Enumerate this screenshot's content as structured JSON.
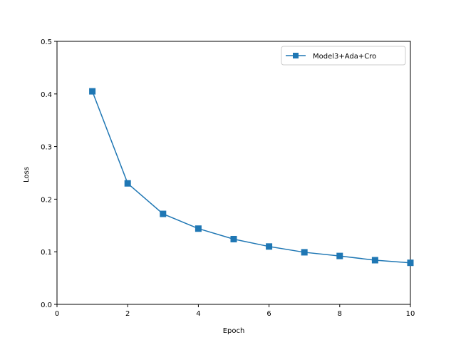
{
  "chart_data": {
    "type": "line",
    "title": "",
    "xlabel": "Epoch",
    "ylabel": "Loss",
    "xlim": [
      0,
      10
    ],
    "ylim": [
      0,
      0.5
    ],
    "xticks": [
      0,
      2,
      4,
      6,
      8,
      10
    ],
    "xtick_labels": [
      "0",
      "2",
      "4",
      "6",
      "8",
      "10"
    ],
    "yticks": [
      0.0,
      0.1,
      0.2,
      0.3,
      0.4,
      0.5
    ],
    "ytick_labels": [
      "0.0",
      "0.1",
      "0.2",
      "0.3",
      "0.4",
      "0.5"
    ],
    "grid": false,
    "legend_position": "upper right",
    "series": [
      {
        "name": "Model3+Ada+Cro",
        "color": "#1f77b4",
        "marker": "square",
        "x": [
          1,
          2,
          3,
          4,
          5,
          6,
          7,
          8,
          9,
          10
        ],
        "y": [
          0.405,
          0.23,
          0.172,
          0.144,
          0.124,
          0.11,
          0.099,
          0.092,
          0.084,
          0.079
        ]
      }
    ]
  }
}
